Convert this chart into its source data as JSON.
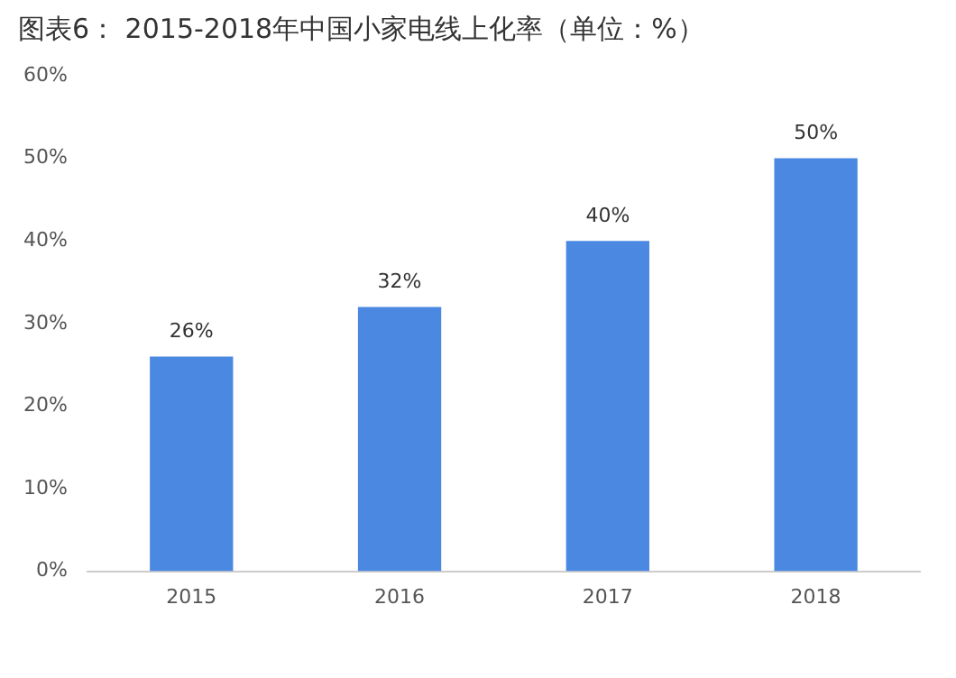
{
  "chart_data": {
    "type": "bar",
    "title": "图表6： 2015-2018年中国小家电线上化率（单位：%）",
    "categories": [
      "2015",
      "2016",
      "2017",
      "2018"
    ],
    "values": [
      26,
      32,
      40,
      50
    ],
    "color": "#4a88e2",
    "ylim": [
      0,
      60
    ],
    "yticks": [
      {
        "value": 0,
        "label": "0%"
      },
      {
        "value": 10,
        "label": "10%"
      },
      {
        "value": 20,
        "label": "20%"
      },
      {
        "value": 30,
        "label": "30%"
      },
      {
        "value": 40,
        "label": "40%"
      },
      {
        "value": 50,
        "label": "50%"
      },
      {
        "value": 60,
        "label": "60%"
      }
    ],
    "value_labels": [
      "26%",
      "32%",
      "40%",
      "50%"
    ],
    "grid": false,
    "legend": false
  }
}
